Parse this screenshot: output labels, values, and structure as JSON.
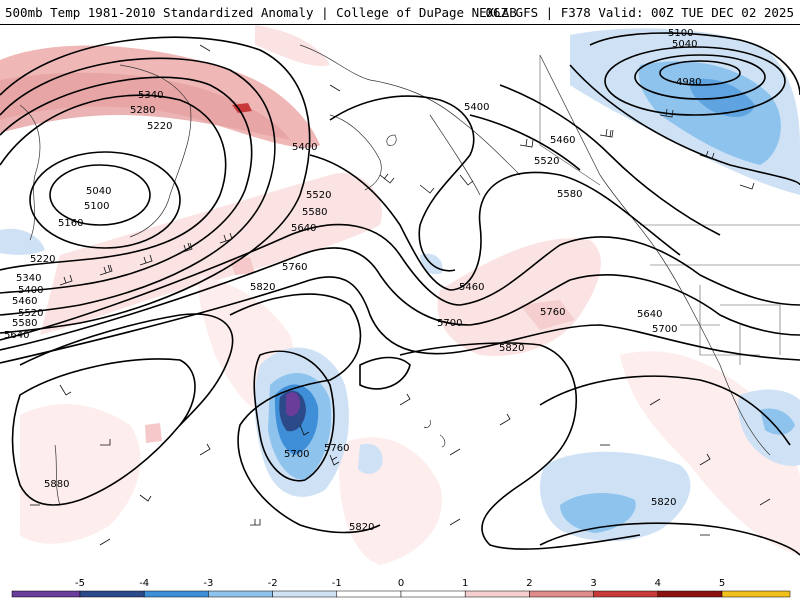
{
  "header": {
    "title": "500mb Temp 1981-2010 Standardized Anomaly | College of DuPage NEXLAB",
    "run_info": "06Z GFS | F378 Valid: 00Z TUE DEC 02 2025"
  },
  "map": {
    "contour_labels": [
      "5100",
      "5040",
      "4980",
      "5340",
      "5280",
      "5220",
      "5040",
      "5100",
      "5160",
      "5400",
      "5460",
      "5520",
      "5580",
      "5400",
      "5520",
      "5580",
      "5640",
      "5220",
      "5340",
      "5400",
      "5460",
      "5520",
      "5580",
      "5640",
      "5760",
      "5820",
      "5460",
      "5700",
      "5760",
      "5820",
      "5640",
      "5700",
      "5700",
      "5760",
      "5820",
      "5880",
      "5820"
    ],
    "colors": {
      "contour": "#000000",
      "coast": "#333333",
      "border": "#555555"
    }
  },
  "colorbar": {
    "ticks": [
      "-5",
      "-4",
      "-3",
      "-2",
      "-1",
      "0",
      "1",
      "2",
      "3",
      "4",
      "5"
    ],
    "colors": [
      "#6a3d9a",
      "#2c4a8a",
      "#3f8fd8",
      "#8ec3ee",
      "#cfe2f5",
      "#ffffff",
      "#ffffff",
      "#f5cfcf",
      "#e08c8c",
      "#c83a3a",
      "#8c1010",
      "#f2c01a"
    ]
  }
}
